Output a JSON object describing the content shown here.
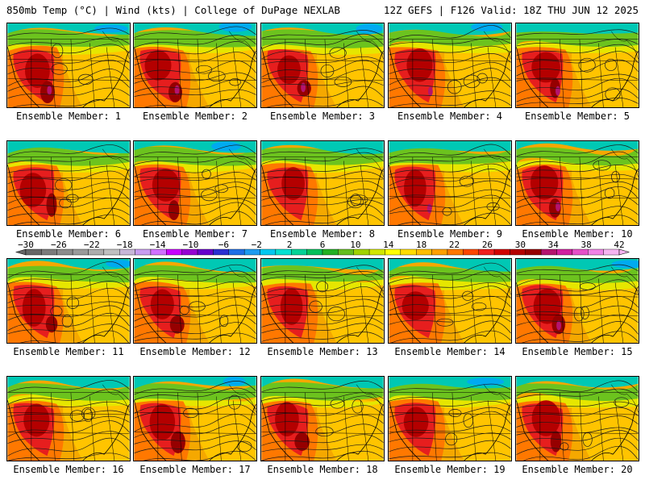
{
  "header": {
    "left": "850mb Temp (°C) | Wind (kts) | College of DuPage NEXLAB",
    "right": "12Z GEFS | F126 Valid: 18Z THU JUN 12 2025"
  },
  "member_prefix": "Ensemble Member: ",
  "members": [
    {
      "n": "1",
      "seed": 11
    },
    {
      "n": "2",
      "seed": 23
    },
    {
      "n": "3",
      "seed": 37
    },
    {
      "n": "4",
      "seed": 41
    },
    {
      "n": "5",
      "seed": 53
    },
    {
      "n": "6",
      "seed": 61
    },
    {
      "n": "7",
      "seed": 71
    },
    {
      "n": "8",
      "seed": 83
    },
    {
      "n": "9",
      "seed": 97
    },
    {
      "n": "10",
      "seed": 101
    },
    {
      "n": "11",
      "seed": 113
    },
    {
      "n": "12",
      "seed": 127
    },
    {
      "n": "13",
      "seed": 131
    },
    {
      "n": "14",
      "seed": 149
    },
    {
      "n": "15",
      "seed": 157
    },
    {
      "n": "16",
      "seed": 163
    },
    {
      "n": "17",
      "seed": 173
    },
    {
      "n": "18",
      "seed": 181
    },
    {
      "n": "19",
      "seed": 191
    },
    {
      "n": "20",
      "seed": 199
    }
  ],
  "colorbar": {
    "tick_labels": [
      "−30",
      "−26",
      "−22",
      "−18",
      "−14",
      "−10",
      "−6",
      "−2",
      "2",
      "6",
      "10",
      "14",
      "18",
      "22",
      "26",
      "30",
      "34",
      "38",
      "42"
    ],
    "colors": [
      "#666666",
      "#7b7b7b",
      "#8c8c8c",
      "#9a9a9a",
      "#adadad",
      "#c0c0c0",
      "#c8b7d8",
      "#c89cf0",
      "#d070ff",
      "#c800ff",
      "#9600d2",
      "#6600cc",
      "#2a30d2",
      "#1e6ee6",
      "#1e9bf0",
      "#00c8f0",
      "#00e1d2",
      "#00d296",
      "#00c05a",
      "#22b022",
      "#64be1e",
      "#a0d200",
      "#d2e600",
      "#ffff00",
      "#ffdc00",
      "#ffbe00",
      "#ffa000",
      "#ff7800",
      "#ff4600",
      "#f01e1e",
      "#d20000",
      "#b40000",
      "#960000",
      "#b4146e",
      "#d21ea0",
      "#e650c8",
      "#f082e6",
      "#f5b4f0"
    ]
  }
}
